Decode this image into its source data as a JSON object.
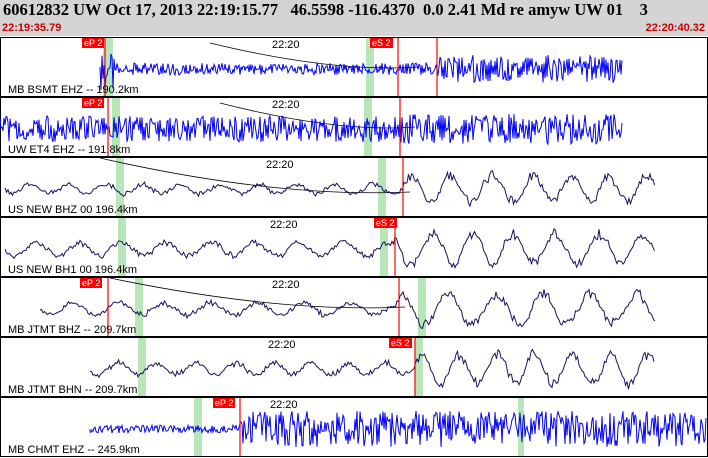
{
  "header": {
    "title": "60612832 UW Oct 17, 2013 22:19:15.77   46.5598 -116.4370  0.0 2.41 Md re amyw UW 01    3",
    "start_time": "22:19:35.79",
    "end_time": "22:20:40.32"
  },
  "colors": {
    "blue": "#0000ff",
    "navy": "#1a1060",
    "pick": "#ff0000",
    "window": "#b8e6b8",
    "header_bg": "#d4d4d4"
  },
  "traces": [
    {
      "label": "MB BSMT EHZ -- 190.2km",
      "time_mark": "22:20",
      "picks": [
        "eP 2",
        "eS 2"
      ],
      "color": "blue"
    },
    {
      "label": "UW ET4 EHZ -- 191.8km",
      "time_mark": "22:20",
      "picks": [
        "eP 2"
      ],
      "color": "blue"
    },
    {
      "label": "US NEW BHZ 00 196.4km",
      "time_mark": "22:20",
      "picks": [],
      "color": "navy"
    },
    {
      "label": "US NEW BH1 00 196.4km",
      "time_mark": "22:20",
      "picks": [
        "eS 2"
      ],
      "color": "navy"
    },
    {
      "label": "MB JTMT BHZ -- 209.7km",
      "time_mark": "22:20",
      "picks": [
        "eP 2"
      ],
      "color": "navy"
    },
    {
      "label": "MB JTMT BHN -- 209.7km",
      "time_mark": "22:20",
      "picks": [
        "eS 2"
      ],
      "color": "navy"
    },
    {
      "label": "MB CHMT EHZ -- 245.9km",
      "time_mark": "22:20",
      "picks": [
        "eP 2"
      ],
      "color": "blue"
    }
  ]
}
